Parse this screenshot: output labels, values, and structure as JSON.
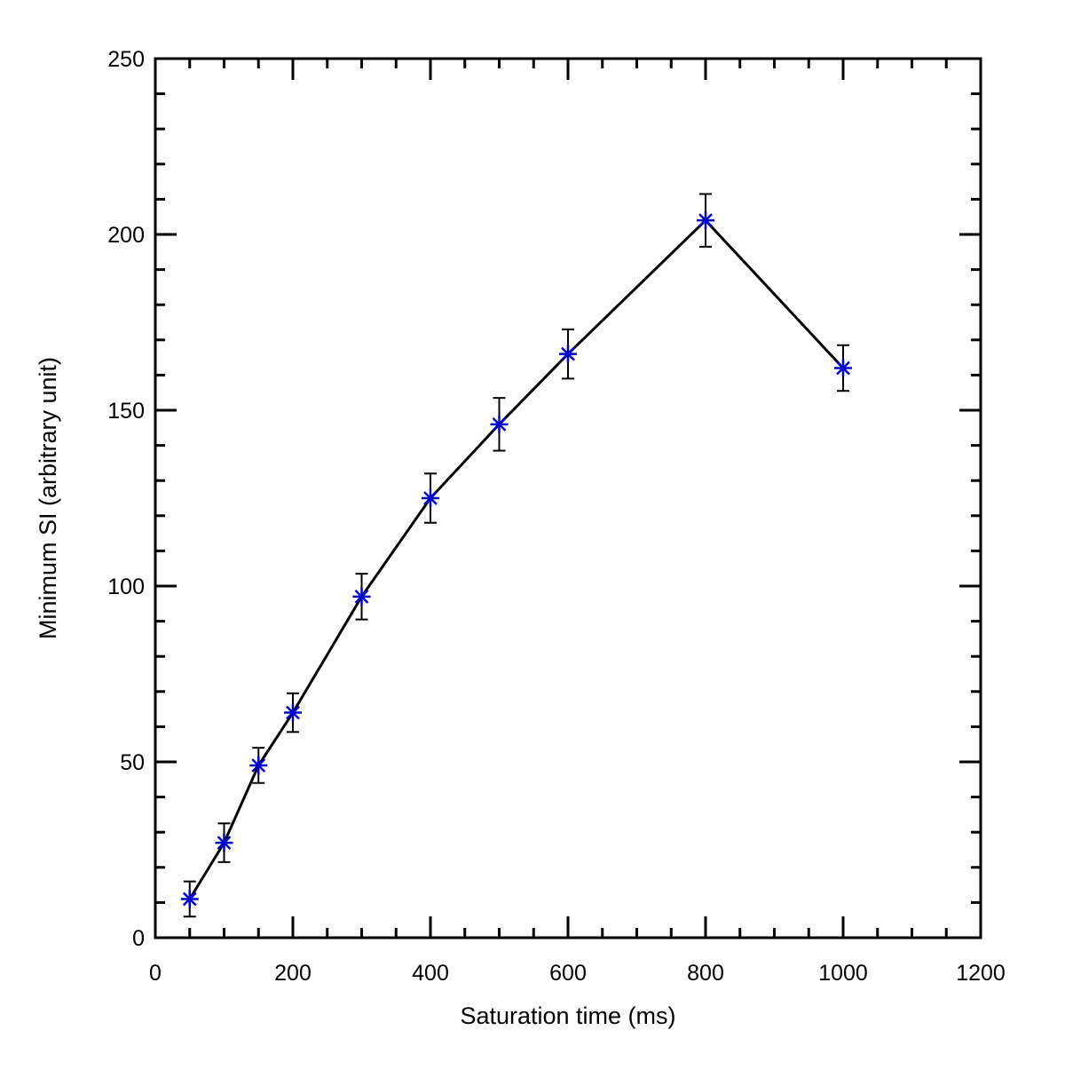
{
  "chart_data": {
    "type": "line",
    "title": "",
    "xlabel": "Saturation time (ms)",
    "ylabel": "Minimum SI (arbitrary unit)",
    "xlim": [
      0,
      1200
    ],
    "ylim": [
      0,
      250
    ],
    "x_ticks": [
      0,
      200,
      400,
      600,
      800,
      1000,
      1200
    ],
    "y_ticks": [
      0,
      50,
      100,
      150,
      200,
      250
    ],
    "x_minor_step": 50,
    "y_minor_step": 10,
    "grid": false,
    "legend": "none",
    "line_color": "#000000",
    "marker_color": "#0000cc",
    "marker": "asterisk",
    "series": [
      {
        "x": [
          50,
          100,
          150,
          200,
          300,
          400,
          500,
          600,
          800,
          1000
        ],
        "y": [
          11,
          27,
          49,
          64,
          97,
          125,
          146,
          166,
          204,
          162
        ],
        "err": [
          5,
          5.5,
          5,
          5.5,
          6.5,
          7,
          7.5,
          7,
          7.5,
          6.5
        ]
      }
    ]
  }
}
